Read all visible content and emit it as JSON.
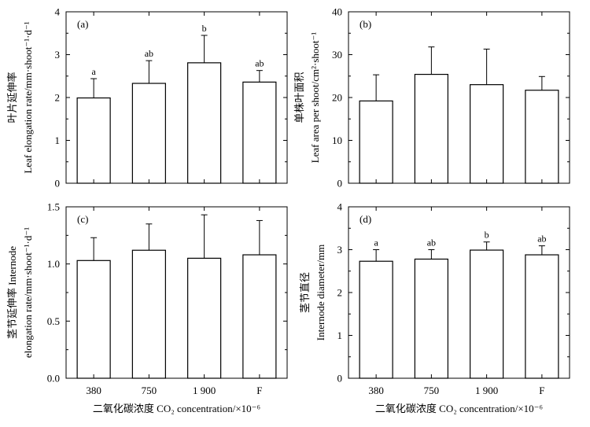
{
  "chart_data": [
    {
      "type": "bar",
      "panel_label": "(a)",
      "categories": [
        "380",
        "750",
        "1 900",
        "F"
      ],
      "values": [
        1.99,
        2.33,
        2.81,
        2.36
      ],
      "errors": [
        0.45,
        0.53,
        0.64,
        0.27
      ],
      "significance": [
        "a",
        "ab",
        "b",
        "ab"
      ],
      "ylabel_cn": "叶片延伸率",
      "ylabel_en": "Leaf elongation rate/mm·shoot⁻¹·d⁻¹",
      "ylim": [
        0,
        4
      ],
      "yticks": [
        "0",
        "1",
        "2",
        "3",
        "4"
      ],
      "xlabel": ""
    },
    {
      "type": "bar",
      "panel_label": "(b)",
      "categories": [
        "380",
        "750",
        "1 900",
        "F"
      ],
      "values": [
        19.2,
        25.4,
        23.0,
        21.7
      ],
      "errors": [
        6.1,
        6.4,
        8.3,
        3.2
      ],
      "significance": [
        "",
        "",
        "",
        ""
      ],
      "ylabel_cn": "单株叶面积",
      "ylabel_en": "Leaf area per shoot/cm²·shoot⁻¹",
      "ylim": [
        0,
        40
      ],
      "yticks": [
        "0",
        "10",
        "20",
        "30",
        "40"
      ],
      "xlabel": ""
    },
    {
      "type": "bar",
      "panel_label": "(c)",
      "categories": [
        "380",
        "750",
        "1 900",
        "F"
      ],
      "values": [
        1.03,
        1.12,
        1.05,
        1.08
      ],
      "errors": [
        0.2,
        0.23,
        0.38,
        0.3
      ],
      "significance": [
        "",
        "",
        "",
        ""
      ],
      "ylabel_cn": "茎节延伸率",
      "ylabel_en": "Internode",
      "ylabel_en2": "elongation rate/mm·shoot⁻¹·d⁻¹",
      "ylim": [
        0,
        1.5
      ],
      "yticks": [
        "0.0",
        "0.5",
        "1.0",
        "1.5"
      ],
      "xlabel": "二氧化碳浓度 CO₂ concentration/×10⁻⁶"
    },
    {
      "type": "bar",
      "panel_label": "(d)",
      "categories": [
        "380",
        "750",
        "1 900",
        "F"
      ],
      "values": [
        2.73,
        2.78,
        2.99,
        2.88
      ],
      "errors": [
        0.27,
        0.22,
        0.19,
        0.21
      ],
      "significance": [
        "a",
        "ab",
        "b",
        "ab"
      ],
      "ylabel_cn": "茎节直径",
      "ylabel_en": "Internode diameter/mm",
      "ylim": [
        0,
        4
      ],
      "yticks": [
        "0",
        "1",
        "2",
        "3",
        "4"
      ],
      "xlabel": "二氧化碳浓度 CO₂ concentration/×10⁻⁶"
    }
  ]
}
